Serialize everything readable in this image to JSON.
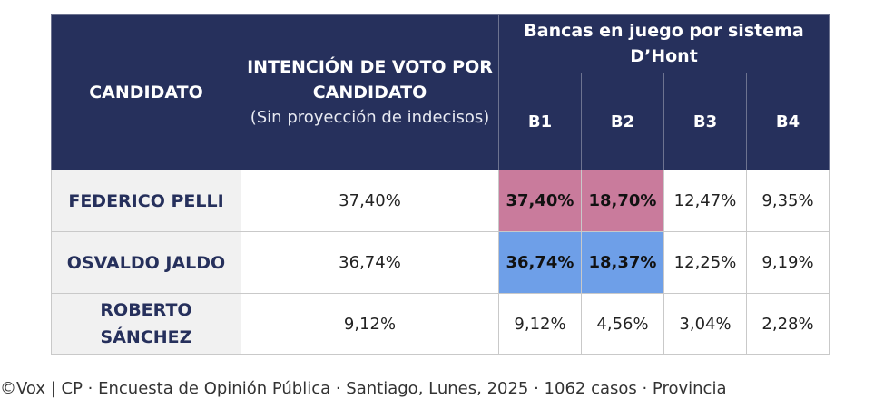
{
  "header": {
    "candidate": "CANDIDATO",
    "vote_title": "INTENCIÓN DE VOTO POR CANDIDATO",
    "vote_subtitle": "(Sin proyección de indecisos)",
    "seats_title": "Bancas en juego por sistema D’Hont",
    "seats": [
      "B1",
      "B2",
      "B3",
      "B4"
    ]
  },
  "rows": [
    {
      "name": "FEDERICO PELLI",
      "vote": "37,40%",
      "seats": [
        "37,40%",
        "18,70%",
        "12,47%",
        "9,35%"
      ],
      "highlight": "pink",
      "highlight_color": "#c97b9c"
    },
    {
      "name": "OSVALDO JALDO",
      "vote": "36,74%",
      "seats": [
        "36,74%",
        "18,37%",
        "12,25%",
        "9,19%"
      ],
      "highlight": "blue",
      "highlight_color": "#6e9fe8"
    },
    {
      "name": "ROBERTO SÁNCHEZ",
      "vote": "9,12%",
      "seats": [
        "9,12%",
        "4,56%",
        "3,04%",
        "2,28%"
      ],
      "highlight": "none"
    }
  ],
  "footer": "©Vox | CP · Encuesta de Opinión Pública · Santiago, Lunes, 2025 · 1062 casos · Provincia",
  "colors": {
    "header_bg": "#26305c",
    "candidate_text": "#26305c",
    "pink": "#c97b9c",
    "blue": "#6e9fe8"
  }
}
